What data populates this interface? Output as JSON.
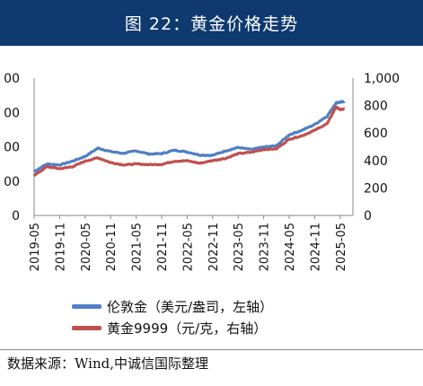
{
  "header": {
    "title": "图 22：黄金价格走势"
  },
  "source": {
    "text": "数据来源：Wind,中诚信国际整理"
  },
  "colors": {
    "title_bg": "#0f3a6f",
    "london": "#4f7fc4",
    "au9999": "#c0504d"
  },
  "chart_data": {
    "type": "line",
    "title": "图 22：黄金价格走势",
    "x_ticks": [
      "2019-05",
      "2019-11",
      "2020-05",
      "2020-11",
      "2021-05",
      "2021-11",
      "2022-05",
      "2022-11",
      "2023-05",
      "2023-11",
      "2024-05",
      "2024-11",
      "2025-05"
    ],
    "left_axis": {
      "ticks": [
        "0",
        "00",
        "00",
        "00",
        "00"
      ],
      "ylim": [
        0,
        4000
      ]
    },
    "right_axis": {
      "ticks": [
        "0",
        "200",
        "400",
        "600",
        "800",
        "1,000"
      ],
      "ylim": [
        0,
        1000
      ]
    },
    "grid": false,
    "legend_position": "bottom",
    "series": [
      {
        "name": "伦敦金（美元/盎司，左轴）",
        "axis": "left",
        "color": "#4f7fc4",
        "x": [
          "2019-05",
          "2019-08",
          "2019-11",
          "2020-02",
          "2020-05",
          "2020-08",
          "2020-11",
          "2021-02",
          "2021-05",
          "2021-08",
          "2021-11",
          "2022-02",
          "2022-05",
          "2022-08",
          "2022-11",
          "2023-02",
          "2023-05",
          "2023-08",
          "2023-11",
          "2024-02",
          "2024-05",
          "2024-08",
          "2024-11",
          "2025-02",
          "2025-04",
          "2025-05",
          "2025-06"
        ],
        "values": [
          1280,
          1500,
          1470,
          1580,
          1720,
          1960,
          1860,
          1810,
          1880,
          1790,
          1800,
          1900,
          1850,
          1760,
          1750,
          1880,
          1980,
          1920,
          1990,
          2030,
          2350,
          2480,
          2650,
          2900,
          3280,
          3300,
          3320
        ]
      },
      {
        "name": "黄金9999（元/克，右轴）",
        "axis": "right",
        "color": "#c0504d",
        "x": [
          "2019-05",
          "2019-08",
          "2019-11",
          "2020-02",
          "2020-05",
          "2020-08",
          "2020-11",
          "2021-02",
          "2021-05",
          "2021-08",
          "2021-11",
          "2022-02",
          "2022-05",
          "2022-08",
          "2022-11",
          "2023-02",
          "2023-05",
          "2023-08",
          "2023-11",
          "2024-02",
          "2024-05",
          "2024-08",
          "2024-11",
          "2025-02",
          "2025-04",
          "2025-05",
          "2025-06"
        ],
        "values": [
          290,
          355,
          340,
          355,
          395,
          420,
          385,
          368,
          375,
          370,
          372,
          395,
          398,
          380,
          400,
          415,
          450,
          460,
          480,
          485,
          555,
          580,
          620,
          670,
          790,
          770,
          775
        ]
      }
    ]
  }
}
